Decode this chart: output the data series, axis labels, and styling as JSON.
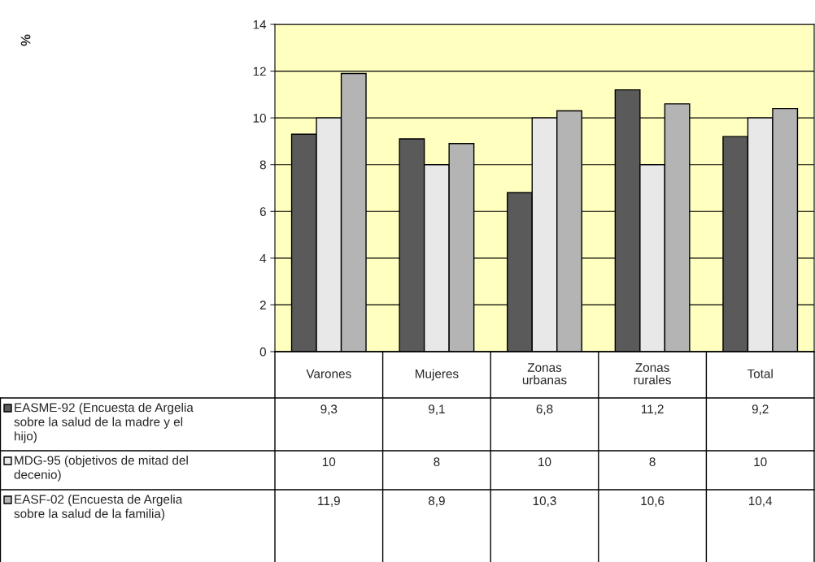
{
  "chart_data": {
    "type": "bar",
    "annotations": [
      "%"
    ],
    "legend": "bottom left",
    "categories": [
      "Varones",
      "Mujeres",
      "Zonas urbanas",
      "Zonas rurales",
      "Total"
    ],
    "series": [
      {
        "name": "EASME-92 (Encuesta de Argelia sobre la salud de la madre y el hijo)",
        "color": "#5a5a5a",
        "values": [
          9.3,
          9.1,
          6.8,
          11.2,
          9.2
        ],
        "value_labels": [
          "9,3",
          "9,1",
          "6,8",
          "11,2",
          "9,2"
        ]
      },
      {
        "name": "MDG-95 (objetivos de mitad del decenio)",
        "color": "#e8e8e8",
        "values": [
          10,
          8,
          10,
          8,
          10
        ],
        "value_labels": [
          "10",
          "8",
          "10",
          "8",
          "10"
        ]
      },
      {
        "name": "EASF-02 (Encuesta de Argelia sobre la salud de la familia)",
        "color": "#b4b4b4",
        "values": [
          11.9,
          8.9,
          10.3,
          10.6,
          10.4
        ],
        "value_labels": [
          "11,9",
          "8,9",
          "10,3",
          "10,6",
          "10,4"
        ]
      }
    ],
    "ylim": [
      0,
      14
    ],
    "yticks": [
      0,
      2,
      4,
      6,
      8,
      10,
      12,
      14
    ],
    "grid": "y",
    "data_labels": true
  }
}
